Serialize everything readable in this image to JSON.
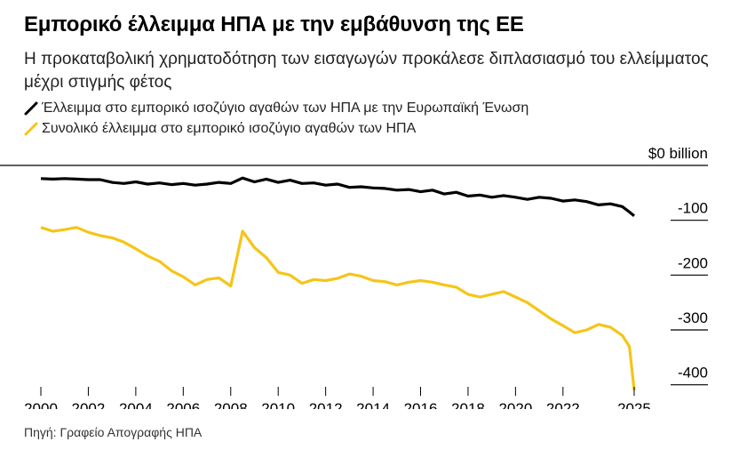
{
  "title": "Εμπορικό έλλειμμα ΗΠΑ με την εμβάθυνση της ΕΕ",
  "subtitle": "Η προκαταβολική χρηματοδότηση των εισαγωγών προκάλεσε διπλασιασμό του ελλείμματος μέχρι στιγμής φέτος",
  "source": "Πηγή: Γραφείο Απογραφής ΗΠΑ",
  "colors": {
    "eu": "#000000",
    "total": "#f5c518",
    "grid": "#000000"
  },
  "chart_data": {
    "type": "line",
    "title": "Εμπορικό έλλειμμα ΗΠΑ με την εμβάθυνση της ΕΕ",
    "ylim": [
      -420,
      0
    ],
    "yticks": [
      {
        "value": 0,
        "label": "$0 billion"
      },
      {
        "value": -100,
        "label": "-100"
      },
      {
        "value": -200,
        "label": "-200"
      },
      {
        "value": -300,
        "label": "-300"
      },
      {
        "value": -400,
        "label": "-400"
      }
    ],
    "xlim": [
      2000,
      2025.3
    ],
    "xticks": [
      2000,
      2002,
      2004,
      2006,
      2008,
      2010,
      2012,
      2014,
      2016,
      2018,
      2020,
      2022,
      2025
    ],
    "legend_position": "top-left",
    "grid": true,
    "series": [
      {
        "name": "Έλλειμμα στο εμπορικό ισοζύγιο αγαθών των ΗΠΑ με την Ευρωπαϊκή Ένωση",
        "color": "#000000",
        "points": [
          [
            2000.0,
            -24
          ],
          [
            2000.5,
            -25
          ],
          [
            2001.0,
            -24
          ],
          [
            2001.5,
            -25
          ],
          [
            2002.0,
            -26
          ],
          [
            2002.5,
            -26
          ],
          [
            2003.0,
            -31
          ],
          [
            2003.5,
            -33
          ],
          [
            2004.0,
            -30
          ],
          [
            2004.5,
            -34
          ],
          [
            2005.0,
            -32
          ],
          [
            2005.5,
            -35
          ],
          [
            2006.0,
            -33
          ],
          [
            2006.5,
            -36
          ],
          [
            2007.0,
            -34
          ],
          [
            2007.5,
            -31
          ],
          [
            2008.0,
            -33
          ],
          [
            2008.5,
            -23
          ],
          [
            2009.0,
            -30
          ],
          [
            2009.5,
            -25
          ],
          [
            2010.0,
            -31
          ],
          [
            2010.5,
            -27
          ],
          [
            2011.0,
            -33
          ],
          [
            2011.5,
            -32
          ],
          [
            2012.0,
            -36
          ],
          [
            2012.5,
            -34
          ],
          [
            2013.0,
            -40
          ],
          [
            2013.5,
            -39
          ],
          [
            2014.0,
            -41
          ],
          [
            2014.5,
            -42
          ],
          [
            2015.0,
            -45
          ],
          [
            2015.5,
            -44
          ],
          [
            2016.0,
            -48
          ],
          [
            2016.5,
            -45
          ],
          [
            2017.0,
            -52
          ],
          [
            2017.5,
            -49
          ],
          [
            2018.0,
            -56
          ],
          [
            2018.5,
            -54
          ],
          [
            2019.0,
            -58
          ],
          [
            2019.5,
            -55
          ],
          [
            2020.0,
            -58
          ],
          [
            2020.5,
            -62
          ],
          [
            2021.0,
            -58
          ],
          [
            2021.5,
            -60
          ],
          [
            2022.0,
            -65
          ],
          [
            2022.5,
            -63
          ],
          [
            2023.0,
            -66
          ],
          [
            2023.5,
            -72
          ],
          [
            2024.0,
            -70
          ],
          [
            2024.5,
            -75
          ],
          [
            2024.8,
            -85
          ],
          [
            2025.0,
            -92
          ]
        ]
      },
      {
        "name": "Συνολικό έλλειμμα στο εμπορικό ισοζύγιο αγαθών των ΗΠΑ",
        "color": "#f5c518",
        "points": [
          [
            2000.0,
            -113
          ],
          [
            2000.5,
            -120
          ],
          [
            2001.0,
            -117
          ],
          [
            2001.5,
            -113
          ],
          [
            2002.0,
            -122
          ],
          [
            2002.5,
            -128
          ],
          [
            2003.0,
            -132
          ],
          [
            2003.5,
            -140
          ],
          [
            2004.0,
            -152
          ],
          [
            2004.5,
            -165
          ],
          [
            2005.0,
            -175
          ],
          [
            2005.5,
            -192
          ],
          [
            2006.0,
            -203
          ],
          [
            2006.5,
            -218
          ],
          [
            2007.0,
            -208
          ],
          [
            2007.5,
            -205
          ],
          [
            2008.0,
            -220
          ],
          [
            2008.5,
            -120
          ],
          [
            2009.0,
            -150
          ],
          [
            2009.5,
            -168
          ],
          [
            2010.0,
            -195
          ],
          [
            2010.5,
            -200
          ],
          [
            2011.0,
            -215
          ],
          [
            2011.5,
            -208
          ],
          [
            2012.0,
            -210
          ],
          [
            2012.5,
            -206
          ],
          [
            2013.0,
            -198
          ],
          [
            2013.5,
            -202
          ],
          [
            2014.0,
            -210
          ],
          [
            2014.5,
            -212
          ],
          [
            2015.0,
            -218
          ],
          [
            2015.5,
            -213
          ],
          [
            2016.0,
            -210
          ],
          [
            2016.5,
            -213
          ],
          [
            2017.0,
            -218
          ],
          [
            2017.5,
            -222
          ],
          [
            2018.0,
            -235
          ],
          [
            2018.5,
            -240
          ],
          [
            2019.0,
            -235
          ],
          [
            2019.5,
            -230
          ],
          [
            2020.0,
            -240
          ],
          [
            2020.5,
            -250
          ],
          [
            2021.0,
            -265
          ],
          [
            2021.5,
            -280
          ],
          [
            2022.0,
            -292
          ],
          [
            2022.5,
            -305
          ],
          [
            2023.0,
            -300
          ],
          [
            2023.5,
            -290
          ],
          [
            2024.0,
            -295
          ],
          [
            2024.5,
            -310
          ],
          [
            2024.8,
            -330
          ],
          [
            2025.0,
            -410
          ]
        ]
      }
    ]
  }
}
